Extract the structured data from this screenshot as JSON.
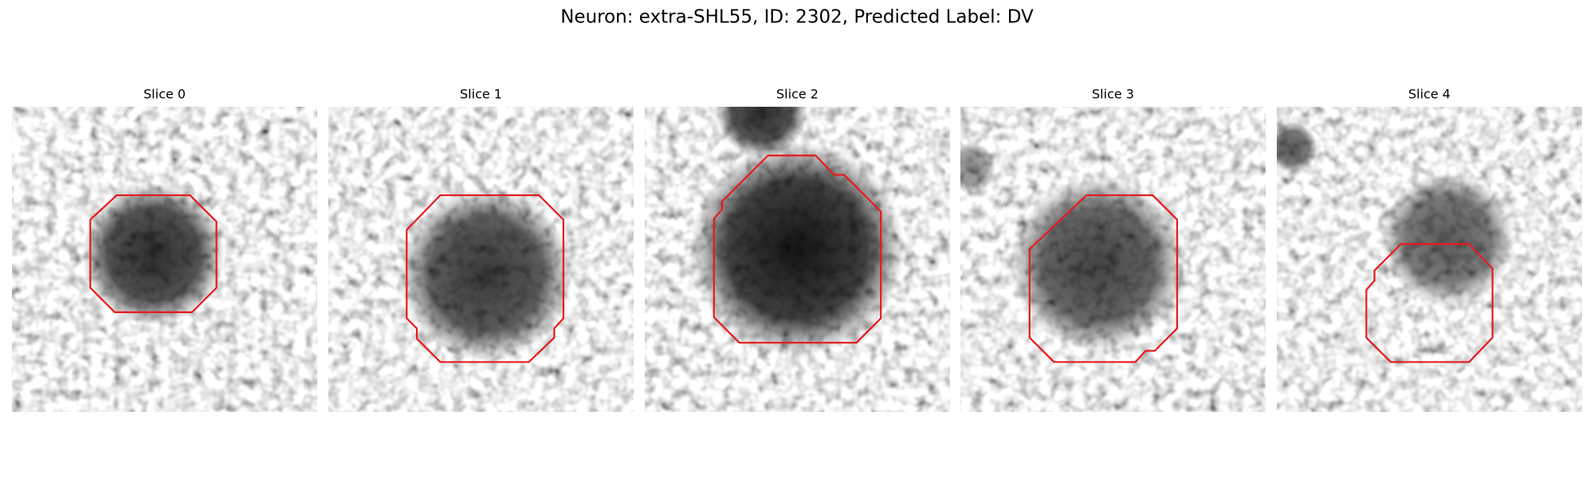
{
  "title": "Neuron: extra-SHL55, ID: 2302, Predicted Label: DV",
  "panels": [
    {
      "title": "Slice 0"
    },
    {
      "title": "Slice 1"
    },
    {
      "title": "Slice 2"
    },
    {
      "title": "Slice 3"
    },
    {
      "title": "Slice 4"
    }
  ]
}
